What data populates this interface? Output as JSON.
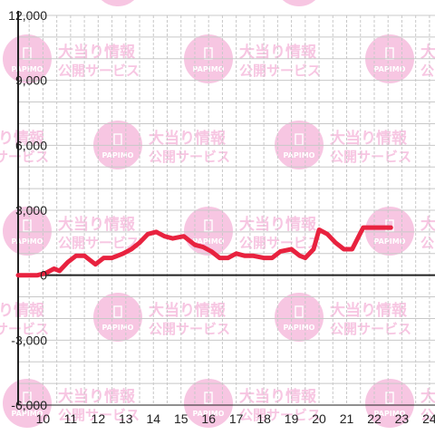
{
  "watermark": {
    "brand": "PAPIMO",
    "line1": "大当り情報",
    "line2": "公開サービス",
    "color": "#f7c6e2"
  },
  "chart_data": {
    "type": "line",
    "title": "",
    "xlabel": "",
    "ylabel": "",
    "x_ticks": [
      "10",
      "11",
      "12",
      "13",
      "14",
      "15",
      "16",
      "17",
      "18",
      "19",
      "20",
      "21",
      "22",
      "23",
      "24"
    ],
    "y_ticks": [
      "12,000",
      "9,000",
      "6,000",
      "3,000",
      "0",
      "-3,000",
      "-6,000"
    ],
    "xlim": [
      9.1,
      24.2
    ],
    "ylim": [
      -6000,
      12000
    ],
    "grid": true,
    "line_color": "#e8223f",
    "series": [
      {
        "x": [
          9.1,
          9.8,
          10.1,
          10.4,
          10.6,
          10.9,
          11.2,
          11.5,
          11.9,
          12.2,
          12.5,
          12.9,
          13.2,
          13.5,
          13.8,
          14.1,
          14.4,
          14.7,
          15.1,
          15.5,
          15.8,
          16.1,
          16.4,
          16.7,
          17.0,
          17.3,
          17.6,
          18.0,
          18.3,
          18.6,
          19.0,
          19.3,
          19.5,
          19.8,
          20.0,
          20.3,
          20.6,
          20.9,
          21.2,
          21.6,
          22.0,
          22.6
        ],
        "y": [
          0,
          0,
          100,
          300,
          200,
          600,
          900,
          900,
          500,
          800,
          800,
          1000,
          1200,
          1500,
          1900,
          2000,
          1800,
          1700,
          1800,
          1400,
          1300,
          1100,
          800,
          800,
          1000,
          900,
          900,
          800,
          800,
          1100,
          1200,
          900,
          800,
          1200,
          2100,
          1900,
          1500,
          1200,
          1200,
          2200,
          2200,
          2200
        ]
      }
    ]
  }
}
